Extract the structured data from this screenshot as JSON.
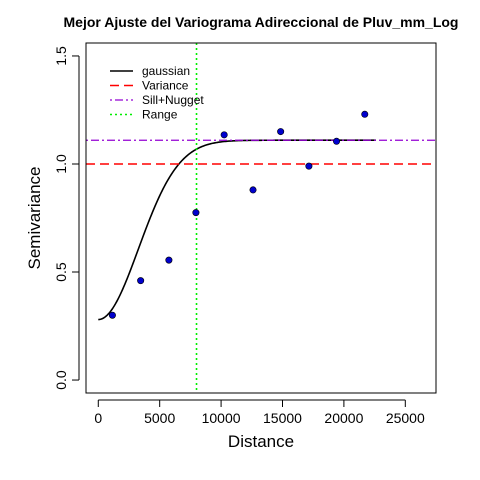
{
  "chart_data": {
    "type": "scatter",
    "title": "Mejor Ajuste del Variograma Adireccional de Pluv_mm_Log",
    "xlabel": "Distance",
    "ylabel": "Semivariance",
    "xlim": [
      -1000,
      27500
    ],
    "ylim": [
      -0.06,
      1.56
    ],
    "xticks": [
      0,
      5000,
      10000,
      15000,
      20000,
      25000
    ],
    "xtick_labels": [
      "0",
      "5000",
      "10000",
      "15000",
      "20000",
      "25000"
    ],
    "yticks": [
      0.0,
      0.5,
      1.0,
      1.5
    ],
    "ytick_labels": [
      "0.0",
      "0.5",
      "1.0",
      "1.5"
    ],
    "grid": false,
    "legend_position": "top-left",
    "points": {
      "color": "#0000cd",
      "x": [
        1150,
        3450,
        5750,
        7950,
        10250,
        12600,
        14850,
        17150,
        19400,
        21700
      ],
      "y": [
        0.3,
        0.46,
        0.555,
        0.775,
        1.135,
        0.88,
        1.15,
        0.99,
        1.105,
        1.23
      ]
    },
    "series": [
      {
        "name": "gaussian",
        "kind": "curve",
        "color": "#000000",
        "style": "solid",
        "model": {
          "nugget": 0.28,
          "sill": 1.11,
          "range": 8000,
          "x_max": 22600
        }
      },
      {
        "name": "Variance",
        "kind": "hline",
        "y": 1.0,
        "color": "#ff0000",
        "style": "dashed"
      },
      {
        "name": "Sill+Nugget",
        "kind": "hline",
        "y": 1.11,
        "color": "#9400d3",
        "style": "dotdash"
      },
      {
        "name": "Range",
        "kind": "vline",
        "x": 8000,
        "color": "#00ee00",
        "style": "dotted"
      }
    ]
  }
}
